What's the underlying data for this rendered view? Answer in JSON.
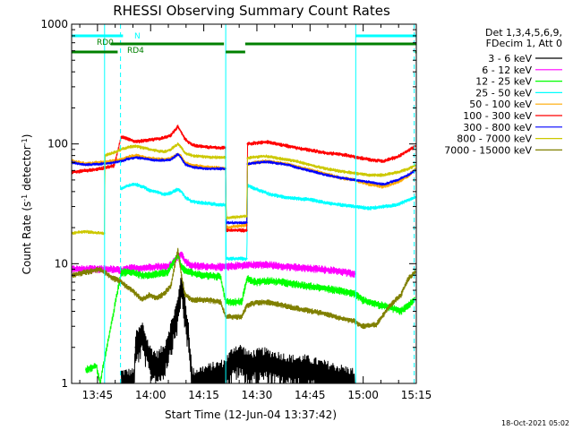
{
  "chart_data": {
    "type": "line",
    "title": "RHESSI Observing Summary Count Rates",
    "xlabel": "Start Time (12-Jun-04 13:37:42)",
    "ylabel_main": "Count Rate (s",
    "ylabel_sup1": "-1",
    "ylabel_mid": " detector",
    "ylabel_sup2": "-1",
    "ylabel_end": ")",
    "ylog": true,
    "ylim": [
      1,
      1000
    ],
    "xlim_minutes": [
      0,
      97.3
    ],
    "x_tick_minutes": [
      7.3,
      22.3,
      37.3,
      52.3,
      67.3,
      82.3,
      97.3
    ],
    "x_tick_labels": [
      "13:45",
      "14:00",
      "14:15",
      "14:30",
      "14:45",
      "15:00",
      "15:15"
    ],
    "y_ticks": [
      1,
      10,
      100,
      1000
    ],
    "y_tick_labels": [
      "1",
      "10",
      "100",
      "1000"
    ],
    "legend_header": [
      "Det 1,3,4,5,6,9,",
      "FDecim 1, Att 0"
    ],
    "series": [
      {
        "name": "3 - 6 keV",
        "color": "#000000",
        "points": [
          [
            14,
            1
          ],
          [
            17.6,
            1
          ],
          [
            18,
            2
          ],
          [
            20,
            2.5
          ],
          [
            22,
            1.6
          ],
          [
            24,
            1.4
          ],
          [
            26,
            1.6
          ],
          [
            28,
            2.5
          ],
          [
            30,
            4
          ],
          [
            31,
            7
          ],
          [
            32,
            4
          ],
          [
            33,
            2.5
          ],
          [
            34,
            1
          ],
          [
            43,
            1.2
          ],
          [
            46,
            1.6
          ],
          [
            48,
            1.6
          ],
          [
            50,
            1.4
          ],
          [
            54,
            1.5
          ],
          [
            58,
            1.4
          ],
          [
            62,
            1.3
          ],
          [
            66,
            1.3
          ],
          [
            70,
            1.2
          ],
          [
            75,
            1.1
          ],
          [
            80,
            1
          ]
        ],
        "spread": 0.35
      },
      {
        "name": "6 - 12 keV",
        "color": "#ff00ff",
        "points": [
          [
            0,
            9
          ],
          [
            11,
            9
          ],
          [
            14,
            8.8
          ],
          [
            17,
            9.2
          ],
          [
            20,
            9.2
          ],
          [
            24,
            9.5
          ],
          [
            27,
            9.4
          ],
          [
            29,
            10.5
          ],
          [
            30,
            11.5
          ],
          [
            31,
            12
          ],
          [
            32,
            10.5
          ],
          [
            34,
            9.6
          ],
          [
            38,
            9.5
          ],
          [
            42,
            9.4
          ],
          [
            43.5,
            9.4
          ],
          [
            46,
            9.6
          ],
          [
            50,
            9.8
          ],
          [
            55,
            9.8
          ],
          [
            60,
            9.5
          ],
          [
            65,
            9.2
          ],
          [
            70,
            9
          ],
          [
            75,
            8.7
          ],
          [
            80,
            8.2
          ]
        ],
        "spread": 0.08
      },
      {
        "name": "12 - 25 keV",
        "color": "#00ff00",
        "points": [
          [
            4,
            1.3
          ],
          [
            7,
            1.4
          ],
          [
            8,
            1
          ],
          [
            14,
            8.5
          ],
          [
            17,
            8.5
          ],
          [
            20,
            8
          ],
          [
            24,
            8.2
          ],
          [
            27,
            8.5
          ],
          [
            29,
            10.5
          ],
          [
            30,
            12
          ],
          [
            31,
            9.5
          ],
          [
            32,
            8.8
          ],
          [
            35,
            8.2
          ],
          [
            38,
            8
          ],
          [
            42,
            7.8
          ],
          [
            43.5,
            4.8
          ],
          [
            48,
            4.8
          ],
          [
            49.5,
            7.5
          ],
          [
            52,
            7
          ],
          [
            55,
            7.2
          ],
          [
            60,
            7
          ],
          [
            65,
            6.6
          ],
          [
            70,
            6.3
          ],
          [
            75,
            6
          ],
          [
            80,
            5.6
          ],
          [
            82,
            5
          ],
          [
            86,
            4.6
          ],
          [
            90,
            4.3
          ],
          [
            93,
            4
          ],
          [
            95,
            4.5
          ],
          [
            97,
            5
          ]
        ],
        "spread": 0.08
      },
      {
        "name": "25 - 50 keV",
        "color": "#00ffff",
        "points": [
          [
            14,
            42
          ],
          [
            16,
            45
          ],
          [
            18,
            46
          ],
          [
            20,
            44
          ],
          [
            22,
            41
          ],
          [
            24,
            40
          ],
          [
            26,
            38
          ],
          [
            28,
            39
          ],
          [
            30,
            42
          ],
          [
            31,
            40
          ],
          [
            32,
            36
          ],
          [
            34,
            33
          ],
          [
            38,
            32
          ],
          [
            42,
            31
          ],
          [
            43.5,
            31
          ],
          [
            43.6,
            11
          ],
          [
            49.5,
            11
          ],
          [
            49.6,
            45
          ],
          [
            52,
            42
          ],
          [
            56,
            38
          ],
          [
            60,
            36
          ],
          [
            64,
            35
          ],
          [
            68,
            34
          ],
          [
            72,
            32
          ],
          [
            76,
            31
          ],
          [
            80,
            30
          ],
          [
            84,
            29
          ],
          [
            88,
            30
          ],
          [
            92,
            31
          ],
          [
            95,
            34
          ],
          [
            97,
            36
          ]
        ],
        "spread": 0.04
      },
      {
        "name": "50 - 100 keV",
        "color": "#ffaa00",
        "points": [
          [
            0,
            72
          ],
          [
            4,
            68
          ],
          [
            8,
            70
          ],
          [
            12,
            72
          ],
          [
            14,
            74
          ],
          [
            16,
            78
          ],
          [
            18,
            80
          ],
          [
            20,
            78
          ],
          [
            22,
            76
          ],
          [
            24,
            75
          ],
          [
            26,
            74
          ],
          [
            28,
            76
          ],
          [
            30,
            82
          ],
          [
            31,
            78
          ],
          [
            32,
            70
          ],
          [
            34,
            66
          ],
          [
            38,
            64
          ],
          [
            42,
            63
          ],
          [
            43.5,
            63
          ],
          [
            43.6,
            20
          ],
          [
            49.5,
            21
          ],
          [
            49.6,
            68
          ],
          [
            52,
            70
          ],
          [
            55,
            72
          ],
          [
            58,
            70
          ],
          [
            61,
            68
          ],
          [
            64,
            64
          ],
          [
            68,
            60
          ],
          [
            72,
            56
          ],
          [
            76,
            52
          ],
          [
            80,
            50
          ],
          [
            84,
            46
          ],
          [
            88,
            44
          ],
          [
            92,
            48
          ],
          [
            95,
            54
          ],
          [
            97,
            62
          ]
        ],
        "spread": 0.04
      },
      {
        "name": "100 - 300 keV",
        "color": "#ff0000",
        "points": [
          [
            0,
            58
          ],
          [
            4,
            60
          ],
          [
            8,
            62
          ],
          [
            12,
            66
          ],
          [
            14,
            115
          ],
          [
            16,
            110
          ],
          [
            18,
            104
          ],
          [
            20,
            106
          ],
          [
            22,
            108
          ],
          [
            24,
            110
          ],
          [
            26,
            112
          ],
          [
            28,
            118
          ],
          [
            30,
            140
          ],
          [
            31,
            125
          ],
          [
            32,
            110
          ],
          [
            34,
            98
          ],
          [
            38,
            94
          ],
          [
            42,
            93
          ],
          [
            43.5,
            93
          ],
          [
            43.6,
            19
          ],
          [
            49.5,
            19
          ],
          [
            49.6,
            100
          ],
          [
            52,
            102
          ],
          [
            55,
            104
          ],
          [
            58,
            100
          ],
          [
            61,
            96
          ],
          [
            64,
            92
          ],
          [
            68,
            88
          ],
          [
            72,
            84
          ],
          [
            76,
            82
          ],
          [
            80,
            78
          ],
          [
            84,
            74
          ],
          [
            88,
            72
          ],
          [
            92,
            78
          ],
          [
            95,
            88
          ],
          [
            97,
            96
          ]
        ],
        "spread": 0.04
      },
      {
        "name": "300 - 800 keV",
        "color": "#0000ff",
        "points": [
          [
            0,
            70
          ],
          [
            4,
            67
          ],
          [
            8,
            68
          ],
          [
            12,
            70
          ],
          [
            14,
            72
          ],
          [
            16,
            75
          ],
          [
            18,
            77
          ],
          [
            20,
            76
          ],
          [
            22,
            74
          ],
          [
            24,
            73
          ],
          [
            26,
            73
          ],
          [
            28,
            74
          ],
          [
            30,
            82
          ],
          [
            31,
            76
          ],
          [
            32,
            68
          ],
          [
            34,
            64
          ],
          [
            38,
            62
          ],
          [
            42,
            62
          ],
          [
            43.5,
            62
          ],
          [
            43.6,
            22
          ],
          [
            49.5,
            22
          ],
          [
            49.6,
            68
          ],
          [
            52,
            70
          ],
          [
            55,
            71
          ],
          [
            58,
            69
          ],
          [
            61,
            67
          ],
          [
            64,
            63
          ],
          [
            68,
            59
          ],
          [
            72,
            55
          ],
          [
            76,
            52
          ],
          [
            80,
            50
          ],
          [
            84,
            48
          ],
          [
            88,
            46
          ],
          [
            92,
            50
          ],
          [
            95,
            55
          ],
          [
            97,
            60
          ]
        ],
        "spread": 0.03
      },
      {
        "name": "800 - 7000 keV",
        "color": "#ccc800",
        "points": [
          [
            0,
            18
          ],
          [
            4,
            18.5
          ],
          [
            8,
            18
          ],
          [
            9.3,
            18
          ],
          [
            9.4,
            80
          ],
          [
            12,
            85
          ],
          [
            14,
            90
          ],
          [
            16,
            94
          ],
          [
            18,
            96
          ],
          [
            20,
            93
          ],
          [
            22,
            90
          ],
          [
            24,
            88
          ],
          [
            26,
            86
          ],
          [
            28,
            90
          ],
          [
            30,
            100
          ],
          [
            31,
            94
          ],
          [
            32,
            84
          ],
          [
            34,
            80
          ],
          [
            38,
            78
          ],
          [
            42,
            77
          ],
          [
            43.5,
            77
          ],
          [
            43.6,
            24
          ],
          [
            49.5,
            25
          ],
          [
            49.6,
            76
          ],
          [
            52,
            78
          ],
          [
            55,
            79
          ],
          [
            58,
            76
          ],
          [
            61,
            74
          ],
          [
            64,
            71
          ],
          [
            68,
            66
          ],
          [
            72,
            62
          ],
          [
            76,
            59
          ],
          [
            80,
            57
          ],
          [
            84,
            55
          ],
          [
            88,
            55
          ],
          [
            92,
            58
          ],
          [
            95,
            62
          ],
          [
            97,
            66
          ]
        ],
        "spread": 0.035
      },
      {
        "name": "7000 - 15000 keV",
        "color": "#808000",
        "points": [
          [
            0,
            8
          ],
          [
            4,
            8.5
          ],
          [
            8,
            9
          ],
          [
            10,
            8.2
          ],
          [
            12,
            7.5
          ],
          [
            14,
            7
          ],
          [
            17,
            6
          ],
          [
            20,
            5
          ],
          [
            22,
            5.5
          ],
          [
            24,
            5.2
          ],
          [
            26,
            5.6
          ],
          [
            28,
            6.5
          ],
          [
            30,
            13
          ],
          [
            31,
            8
          ],
          [
            32,
            5.5
          ],
          [
            34,
            5
          ],
          [
            38,
            5
          ],
          [
            42,
            4.8
          ],
          [
            43.5,
            3.6
          ],
          [
            48,
            3.6
          ],
          [
            49.5,
            4.5
          ],
          [
            52,
            4.7
          ],
          [
            55,
            4.8
          ],
          [
            58,
            4.6
          ],
          [
            61,
            4.4
          ],
          [
            64,
            4.2
          ],
          [
            68,
            4
          ],
          [
            72,
            3.8
          ],
          [
            76,
            3.5
          ],
          [
            80,
            3.3
          ],
          [
            82,
            3
          ],
          [
            86,
            3.1
          ],
          [
            90,
            4.5
          ],
          [
            93,
            5.5
          ],
          [
            95,
            7.5
          ],
          [
            97,
            8.5
          ]
        ],
        "spread": 0.06
      }
    ],
    "vertical_lines": [
      {
        "x": 9.3,
        "color": "#00ffff",
        "style": "solid"
      },
      {
        "x": 13.8,
        "color": "#00ffff",
        "style": "dashed"
      },
      {
        "x": 43.5,
        "color": "#00ffff",
        "style": "solid"
      },
      {
        "x": 80.2,
        "color": "#00ffff",
        "style": "solid"
      },
      {
        "x": 96.7,
        "color": "#00ffff",
        "style": "dashed"
      }
    ],
    "flags": [
      {
        "label": "N",
        "color": "#00ffff",
        "segments": [
          [
            0,
            14.5
          ],
          [
            80.2,
            97.3
          ]
        ]
      },
      {
        "label": "RD0",
        "color": "#008000",
        "segments": [
          [
            11,
            43
          ],
          [
            49,
            97.3
          ]
        ]
      },
      {
        "label": "RD4",
        "color": "#008000",
        "segments": [
          [
            0,
            13
          ],
          [
            43.5,
            49
          ],
          [
            97,
            97.3
          ]
        ]
      }
    ]
  },
  "footer": {
    "date": "18-Oct-2021 05:02"
  }
}
